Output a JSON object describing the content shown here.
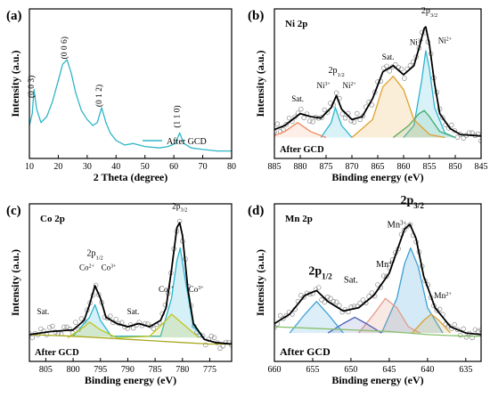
{
  "chart_data": [
    {
      "type": "line",
      "panel_label": "(a)",
      "title": "",
      "xlabel": "2 Theta (degree)",
      "ylabel": "Intensity (a.u.)",
      "xlim": [
        10,
        80
      ],
      "xticks": [
        10,
        20,
        30,
        40,
        50,
        60,
        70,
        80
      ],
      "yticks_shown": false,
      "legend": {
        "position": "bottom-right",
        "entries": [
          "After GCD"
        ]
      },
      "colors": {
        "curve": "#2fb5c8"
      },
      "annotations": [
        {
          "text": "(0 0 3)",
          "x": 11.6
        },
        {
          "text": "(0 0 6)",
          "x": 23.0
        },
        {
          "text": "(0 1 2)",
          "x": 35.0
        },
        {
          "text": "(1 1 0)",
          "x": 62.0
        }
      ],
      "series": [
        {
          "name": "After GCD",
          "x": [
            10,
            11,
            11.6,
            12.5,
            14,
            16,
            18,
            20,
            21.5,
            23,
            24.5,
            26,
            28,
            30,
            32,
            33.5,
            35,
            36.5,
            38,
            40,
            43,
            46,
            50,
            55,
            58,
            60.5,
            62,
            63.5,
            66,
            70,
            75,
            80
          ],
          "y": [
            0.22,
            0.3,
            0.46,
            0.33,
            0.24,
            0.28,
            0.38,
            0.52,
            0.63,
            0.66,
            0.57,
            0.44,
            0.32,
            0.26,
            0.22,
            0.24,
            0.34,
            0.24,
            0.17,
            0.12,
            0.09,
            0.1,
            0.08,
            0.07,
            0.08,
            0.1,
            0.17,
            0.1,
            0.07,
            0.06,
            0.05,
            0.05
          ]
        }
      ]
    },
    {
      "type": "line",
      "panel_label": "(b)",
      "title": "Ni 2p",
      "xlabel": "Binding energy (eV)",
      "ylabel": "Intensity (a.u.)",
      "xlim": [
        885,
        845
      ],
      "xticks": [
        885,
        880,
        875,
        870,
        865,
        860,
        855,
        850,
        845
      ],
      "reversed_x": true,
      "yticks_shown": false,
      "legend": {
        "position": "bottom-left",
        "entries": [
          "After GCD"
        ]
      },
      "colors": {
        "fit": "#000000",
        "ni2": "#2bb5d0",
        "ni3": "#3fa96a",
        "sat": "#e1a02f",
        "sat2": "#f08a60"
      },
      "annotations": [
        {
          "text": "Sat.",
          "x": 880.5
        },
        {
          "text": "Ni3+",
          "x": 875.5
        },
        {
          "text": "2p1/2",
          "x": 873.0
        },
        {
          "text": "Ni2+",
          "x": 870.5
        },
        {
          "text": "Sat.",
          "x": 863.0
        },
        {
          "text": "Ni3+",
          "x": 857.5
        },
        {
          "text": "2p3/2",
          "x": 855.0
        },
        {
          "text": "Ni2+",
          "x": 852.0
        }
      ],
      "series": [
        {
          "name": "Envelope",
          "x": [
            886,
            883,
            880,
            878,
            876,
            874,
            873,
            872,
            870,
            868,
            866,
            864,
            862,
            860,
            858,
            857,
            856,
            855.7,
            855,
            854,
            853,
            851,
            849,
            845
          ],
          "y": [
            0.18,
            0.22,
            0.3,
            0.28,
            0.27,
            0.34,
            0.42,
            0.33,
            0.26,
            0.28,
            0.4,
            0.58,
            0.62,
            0.56,
            0.62,
            0.74,
            0.87,
            0.88,
            0.76,
            0.5,
            0.3,
            0.2,
            0.16,
            0.15
          ]
        },
        {
          "name": "Ni2+ 2p3/2",
          "x": [
            860,
            858,
            856.5,
            855.7,
            855,
            854,
            852,
            850
          ],
          "y": [
            0.14,
            0.22,
            0.52,
            0.72,
            0.6,
            0.34,
            0.17,
            0.14
          ]
        },
        {
          "name": "Ni3+ 2p3/2",
          "x": [
            862,
            859,
            857,
            856,
            855,
            853,
            850
          ],
          "y": [
            0.14,
            0.22,
            0.3,
            0.32,
            0.28,
            0.18,
            0.14
          ]
        },
        {
          "name": "Sat. 2p3/2",
          "x": [
            870,
            866,
            864,
            862,
            860,
            858,
            855,
            852
          ],
          "y": [
            0.14,
            0.26,
            0.48,
            0.55,
            0.46,
            0.26,
            0.16,
            0.14
          ]
        },
        {
          "name": "Ni2+ 2p1/2",
          "x": [
            876,
            874,
            873.2,
            872,
            870
          ],
          "y": [
            0.14,
            0.24,
            0.34,
            0.22,
            0.14
          ]
        },
        {
          "name": "Sat. 2p1/2",
          "x": [
            886,
            883,
            880.5,
            878,
            875
          ],
          "y": [
            0.14,
            0.18,
            0.24,
            0.18,
            0.14
          ]
        }
      ]
    },
    {
      "type": "line",
      "panel_label": "(c)",
      "title": "Co 2p",
      "xlabel": "Binding energy (eV)",
      "ylabel": "Intensity (a.u.)",
      "xlim": [
        808,
        771
      ],
      "xticks": [
        805,
        800,
        795,
        790,
        785,
        780,
        775
      ],
      "reversed_x": true,
      "yticks_shown": false,
      "legend": {
        "position": "bottom-left",
        "entries": [
          "After GCD"
        ]
      },
      "colors": {
        "fit": "#000000",
        "co2": "#c4c51e",
        "co3": "#2bb5d0",
        "bg": "#a8a820"
      },
      "annotations": [
        {
          "text": "Sat.",
          "x": 805.5
        },
        {
          "text": "Co2+",
          "x": 797.5
        },
        {
          "text": "2p1/2",
          "x": 796.0
        },
        {
          "text": "Co3+",
          "x": 793.5
        },
        {
          "text": "Sat.",
          "x": 789.0
        },
        {
          "text": "Co2+",
          "x": 783.0
        },
        {
          "text": "2p3/2",
          "x": 780.5
        },
        {
          "text": "Co3+",
          "x": 777.5
        }
      ],
      "series": [
        {
          "name": "Envelope",
          "x": [
            808,
            804,
            800,
            798,
            797,
            796,
            795,
            794,
            792,
            790,
            788,
            786,
            784,
            783,
            782,
            781,
            780.5,
            780,
            779,
            778,
            776,
            774,
            771
          ],
          "y": [
            0.17,
            0.19,
            0.2,
            0.26,
            0.36,
            0.48,
            0.4,
            0.28,
            0.24,
            0.22,
            0.24,
            0.22,
            0.26,
            0.34,
            0.58,
            0.85,
            0.88,
            0.8,
            0.46,
            0.24,
            0.14,
            0.12,
            0.11
          ]
        },
        {
          "name": "Co3+",
          "x": [
            800,
            797,
            796,
            795,
            793,
            784,
            782,
            781,
            780.4,
            779.5,
            778,
            776
          ],
          "y": [
            0.16,
            0.28,
            0.36,
            0.26,
            0.16,
            0.16,
            0.4,
            0.64,
            0.72,
            0.52,
            0.22,
            0.15
          ]
        },
        {
          "name": "Co2+",
          "x": [
            801,
            798,
            797,
            795,
            792,
            786,
            783,
            782,
            780,
            777
          ],
          "y": [
            0.15,
            0.22,
            0.25,
            0.2,
            0.15,
            0.16,
            0.26,
            0.3,
            0.24,
            0.15
          ]
        },
        {
          "name": "Background",
          "x": [
            808,
            800,
            790,
            785,
            780,
            775,
            771
          ],
          "y": [
            0.17,
            0.16,
            0.14,
            0.13,
            0.12,
            0.11,
            0.11
          ]
        }
      ]
    },
    {
      "type": "line",
      "panel_label": "(d)",
      "title": "Mn 2p",
      "xlabel": "Binding energy (eV)",
      "ylabel": "Intensity (a.u.)",
      "xlim": [
        660,
        633
      ],
      "xticks": [
        660,
        655,
        650,
        645,
        640,
        635
      ],
      "reversed_x": true,
      "yticks_shown": false,
      "legend": {
        "position": "bottom-left",
        "entries": [
          "After GCD"
        ]
      },
      "colors": {
        "fit": "#000000",
        "mn3": "#3da0d8",
        "mn2": "#d9a23a",
        "mn4": "#e59a8a",
        "sat": "#4a5cb8",
        "bg": "#86c06a"
      },
      "annotations": [
        {
          "text": "2p1/2",
          "x": 654.0
        },
        {
          "text": "Sat.",
          "x": 650.0
        },
        {
          "text": "Mn4+",
          "x": 645.5
        },
        {
          "text": "Mn3+",
          "x": 644.0
        },
        {
          "text": "2p3/2",
          "x": 642.0
        },
        {
          "text": "Mn2+",
          "x": 638.0
        }
      ],
      "series": [
        {
          "name": "Envelope",
          "x": [
            660,
            658,
            656,
            654.5,
            653,
            651,
            649,
            647,
            645,
            644,
            643,
            642.3,
            641.5,
            640.5,
            639,
            637,
            635,
            633
          ],
          "y": [
            0.24,
            0.3,
            0.42,
            0.45,
            0.38,
            0.32,
            0.34,
            0.42,
            0.56,
            0.7,
            0.84,
            0.87,
            0.78,
            0.54,
            0.34,
            0.22,
            0.18,
            0.17
          ]
        },
        {
          "name": "Mn3+",
          "x": [
            646,
            644,
            643,
            642.2,
            641.2,
            640,
            638
          ],
          "y": [
            0.18,
            0.4,
            0.62,
            0.72,
            0.6,
            0.34,
            0.18
          ]
        },
        {
          "name": "Mn4+",
          "x": [
            649,
            647,
            645.5,
            644,
            642.5,
            641
          ],
          "y": [
            0.18,
            0.3,
            0.4,
            0.34,
            0.22,
            0.18
          ]
        },
        {
          "name": "Mn2+",
          "x": [
            642,
            640.5,
            639.5,
            638.5,
            637
          ],
          "y": [
            0.18,
            0.26,
            0.3,
            0.26,
            0.18
          ]
        },
        {
          "name": "Sat.",
          "x": [
            653,
            651,
            649.5,
            648,
            646
          ],
          "y": [
            0.18,
            0.24,
            0.28,
            0.24,
            0.18
          ]
        },
        {
          "name": "Mn 2p1/2",
          "x": [
            658,
            656,
            654.5,
            653,
            651
          ],
          "y": [
            0.18,
            0.3,
            0.38,
            0.3,
            0.18
          ]
        },
        {
          "name": "Background",
          "x": [
            660,
            655,
            650,
            645,
            640,
            635,
            633
          ],
          "y": [
            0.22,
            0.21,
            0.2,
            0.19,
            0.17,
            0.16,
            0.16
          ]
        }
      ]
    }
  ]
}
